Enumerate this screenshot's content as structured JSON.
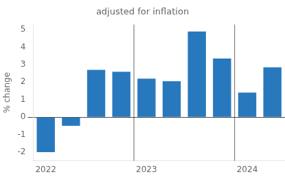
{
  "chart_data": {
    "type": "bar",
    "title": "adjusted for inflation",
    "ylabel": "% change",
    "categories": [
      "2022",
      null,
      null,
      null,
      "2023",
      null,
      null,
      null,
      "2024",
      null
    ],
    "values": [
      -2.0,
      -0.5,
      2.7,
      2.6,
      2.2,
      2.05,
      4.9,
      3.35,
      1.4,
      2.85
    ],
    "color": "#2878be",
    "ylim": [
      -2.5,
      5.3
    ],
    "yticks": [
      -2,
      -1,
      0,
      1,
      2,
      3,
      4,
      5
    ],
    "grid": false
  }
}
